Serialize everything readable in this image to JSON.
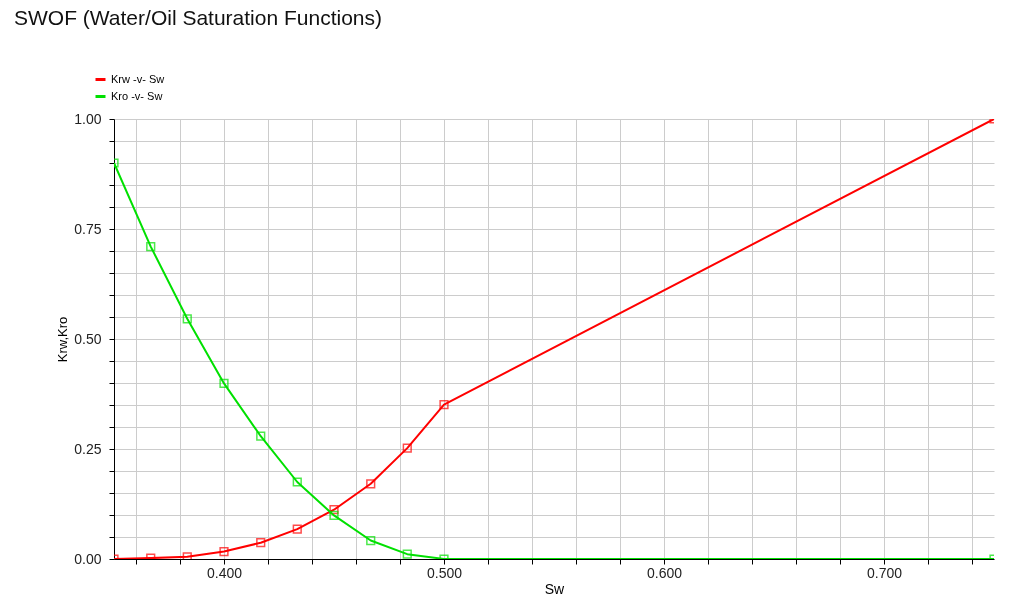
{
  "chart_data": {
    "type": "line",
    "title": "SWOF (Water/Oil Saturation Functions)",
    "xlabel": "Sw",
    "ylabel": "Krw,Kro",
    "xlim": [
      0.35,
      0.75
    ],
    "ylim": [
      0,
      1
    ],
    "xticks": [
      {
        "value": 0.36,
        "label": null
      },
      {
        "value": 0.38,
        "label": null
      },
      {
        "value": 0.4,
        "label": "0.400"
      },
      {
        "value": 0.42,
        "label": null
      },
      {
        "value": 0.44,
        "label": null
      },
      {
        "value": 0.46,
        "label": null
      },
      {
        "value": 0.48,
        "label": null
      },
      {
        "value": 0.5,
        "label": "0.500"
      },
      {
        "value": 0.52,
        "label": null
      },
      {
        "value": 0.54,
        "label": null
      },
      {
        "value": 0.56,
        "label": null
      },
      {
        "value": 0.58,
        "label": null
      },
      {
        "value": 0.6,
        "label": "0.600"
      },
      {
        "value": 0.62,
        "label": null
      },
      {
        "value": 0.64,
        "label": null
      },
      {
        "value": 0.66,
        "label": null
      },
      {
        "value": 0.68,
        "label": null
      },
      {
        "value": 0.7,
        "label": "0.700"
      },
      {
        "value": 0.72,
        "label": null
      },
      {
        "value": 0.74,
        "label": null
      }
    ],
    "yticks": [
      {
        "value": 0,
        "label": "0.00"
      },
      {
        "value": 0.05,
        "label": null
      },
      {
        "value": 0.1,
        "label": null
      },
      {
        "value": 0.15,
        "label": null
      },
      {
        "value": 0.2,
        "label": null
      },
      {
        "value": 0.25,
        "label": "0.25"
      },
      {
        "value": 0.3,
        "label": null
      },
      {
        "value": 0.35,
        "label": null
      },
      {
        "value": 0.4,
        "label": null
      },
      {
        "value": 0.45,
        "label": null
      },
      {
        "value": 0.5,
        "label": "0.50"
      },
      {
        "value": 0.55,
        "label": null
      },
      {
        "value": 0.6,
        "label": null
      },
      {
        "value": 0.65,
        "label": null
      },
      {
        "value": 0.7,
        "label": null
      },
      {
        "value": 0.75,
        "label": "0.75"
      },
      {
        "value": 0.8,
        "label": null
      },
      {
        "value": 0.85,
        "label": null
      },
      {
        "value": 0.9,
        "label": null
      },
      {
        "value": 0.95,
        "label": null
      },
      {
        "value": 1,
        "label": "1.00"
      }
    ],
    "grid": true,
    "legend": "top left",
    "marker": "square",
    "line_style": "solid",
    "series": [
      {
        "name": "Krw -v- Sw",
        "color": "#ff0000",
        "x": [
          0.35,
          0.3667,
          0.3833,
          0.4,
          0.4167,
          0.4333,
          0.45,
          0.4667,
          0.4833,
          0.5,
          0.75
        ],
        "values": [
          0,
          0.002,
          0.005,
          0.017,
          0.037,
          0.068,
          0.112,
          0.171,
          0.252,
          0.351,
          1.0
        ]
      },
      {
        "name": "Kro -v- Sw",
        "color": "#00e000",
        "x": [
          0.35,
          0.3667,
          0.3833,
          0.4,
          0.4167,
          0.4333,
          0.45,
          0.4667,
          0.4833,
          0.5,
          0.75
        ],
        "values": [
          0.9,
          0.71,
          0.546,
          0.399,
          0.279,
          0.175,
          0.099,
          0.042,
          0.011,
          0,
          0
        ]
      }
    ]
  }
}
